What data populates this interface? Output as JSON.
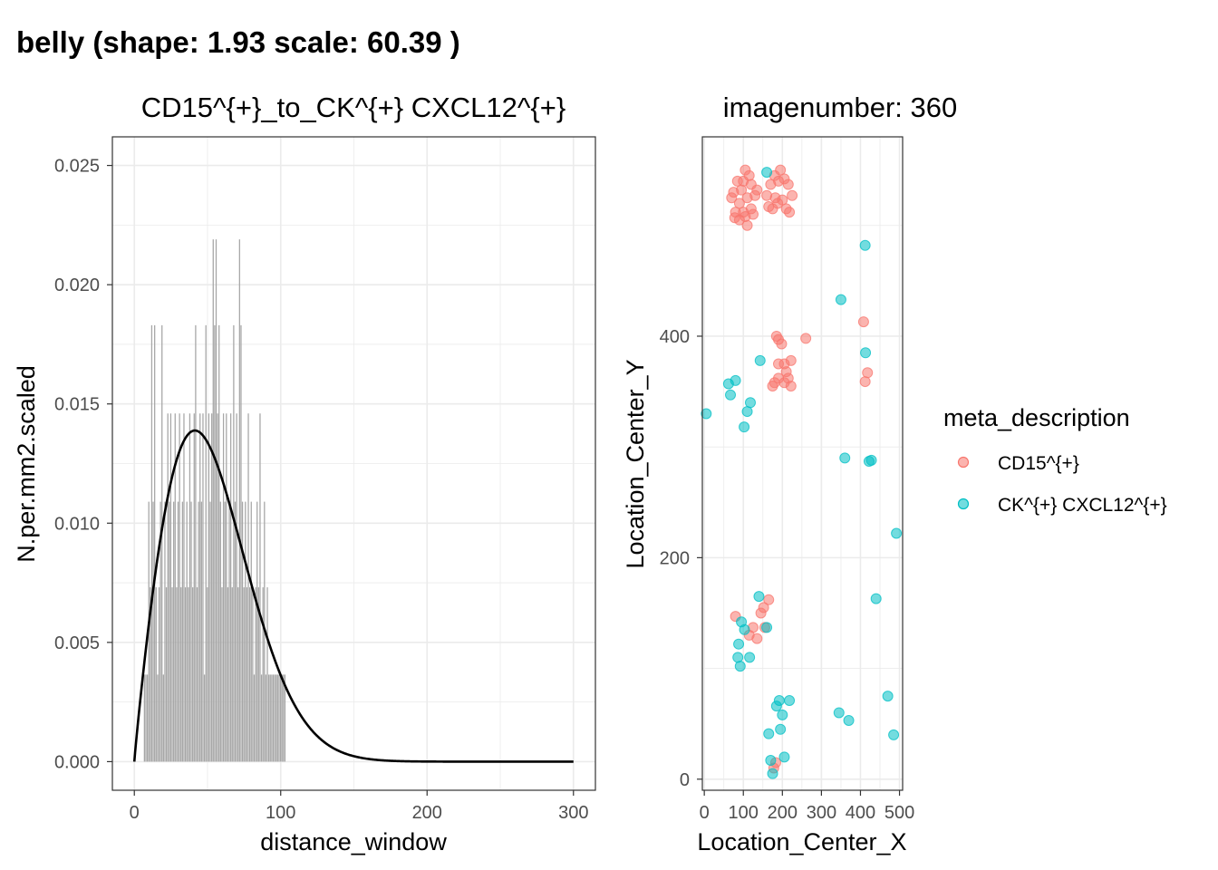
{
  "figure_title": "belly (shape: 1.93 scale: 60.39 )",
  "colors": {
    "bar": "#a6a6a6",
    "curve": "#000000",
    "cd15": "#F8766D",
    "ck": "#00BFC4"
  },
  "chart_data": [
    {
      "type": "bar",
      "title": "CD15^{+}_to_CK^{+} CXCL12^{+}",
      "xlabel": "distance_window",
      "ylabel": "N.per.mm2.scaled",
      "xlim": [
        -15,
        315
      ],
      "ylim": [
        -0.0012,
        0.0262
      ],
      "xticks": [
        0,
        100,
        200,
        300
      ],
      "xtick_labels": [
        "0",
        "100",
        "200",
        "300"
      ],
      "yticks": [
        0,
        0.005,
        0.01,
        0.015,
        0.02,
        0.025
      ],
      "ytick_labels": [
        "0.000",
        "0.005",
        "0.010",
        "0.015",
        "0.020",
        "0.025"
      ],
      "bar_width": 1,
      "bars": [
        {
          "x": 7,
          "y": 0.00365
        },
        {
          "x": 8,
          "y": 0.00365
        },
        {
          "x": 9,
          "y": 0.00365
        },
        {
          "x": 10,
          "y": 0.0109
        },
        {
          "x": 11,
          "y": 0.00731
        },
        {
          "x": 12,
          "y": 0.0183
        },
        {
          "x": 13,
          "y": 0.0109
        },
        {
          "x": 14,
          "y": 0.0183
        },
        {
          "x": 15,
          "y": 0.00731
        },
        {
          "x": 16,
          "y": 0.00365
        },
        {
          "x": 17,
          "y": 0.00731
        },
        {
          "x": 18,
          "y": 0.0109
        },
        {
          "x": 19,
          "y": 0.0183
        },
        {
          "x": 20,
          "y": 0.00365
        },
        {
          "x": 21,
          "y": 0.0109
        },
        {
          "x": 22,
          "y": 0.00731
        },
        {
          "x": 23,
          "y": 0.0146
        },
        {
          "x": 24,
          "y": 0.0109
        },
        {
          "x": 25,
          "y": 0.0146
        },
        {
          "x": 26,
          "y": 0.00731
        },
        {
          "x": 27,
          "y": 0.0109
        },
        {
          "x": 28,
          "y": 0.0146
        },
        {
          "x": 29,
          "y": 0.00731
        },
        {
          "x": 30,
          "y": 0.0109
        },
        {
          "x": 31,
          "y": 0.0146
        },
        {
          "x": 32,
          "y": 0.00731
        },
        {
          "x": 33,
          "y": 0.0109
        },
        {
          "x": 34,
          "y": 0.0146
        },
        {
          "x": 35,
          "y": 0.00731
        },
        {
          "x": 36,
          "y": 0.0109
        },
        {
          "x": 37,
          "y": 0.00731
        },
        {
          "x": 38,
          "y": 0.0146
        },
        {
          "x": 39,
          "y": 0.0109
        },
        {
          "x": 40,
          "y": 0.00731
        },
        {
          "x": 41,
          "y": 0.0146
        },
        {
          "x": 42,
          "y": 0.0183
        },
        {
          "x": 43,
          "y": 0.00731
        },
        {
          "x": 44,
          "y": 0.0109
        },
        {
          "x": 45,
          "y": 0.0146
        },
        {
          "x": 46,
          "y": 0.0109
        },
        {
          "x": 47,
          "y": 0.0146
        },
        {
          "x": 48,
          "y": 0.00365
        },
        {
          "x": 49,
          "y": 0.0183
        },
        {
          "x": 50,
          "y": 0.00731
        },
        {
          "x": 51,
          "y": 0.0146
        },
        {
          "x": 52,
          "y": 0.0109
        },
        {
          "x": 53,
          "y": 0.0146
        },
        {
          "x": 54,
          "y": 0.0219
        },
        {
          "x": 55,
          "y": 0.0183
        },
        {
          "x": 56,
          "y": 0.0219
        },
        {
          "x": 57,
          "y": 0.0146
        },
        {
          "x": 58,
          "y": 0.0183
        },
        {
          "x": 59,
          "y": 0.0109
        },
        {
          "x": 60,
          "y": 0.00731
        },
        {
          "x": 61,
          "y": 0.0146
        },
        {
          "x": 62,
          "y": 0.0109
        },
        {
          "x": 63,
          "y": 0.0146
        },
        {
          "x": 64,
          "y": 0.00731
        },
        {
          "x": 65,
          "y": 0.0109
        },
        {
          "x": 66,
          "y": 0.0146
        },
        {
          "x": 67,
          "y": 0.00731
        },
        {
          "x": 68,
          "y": 0.0183
        },
        {
          "x": 69,
          "y": 0.0109
        },
        {
          "x": 70,
          "y": 0.0146
        },
        {
          "x": 71,
          "y": 0.00731
        },
        {
          "x": 72,
          "y": 0.0219
        },
        {
          "x": 73,
          "y": 0.0183
        },
        {
          "x": 74,
          "y": 0.0109
        },
        {
          "x": 75,
          "y": 0.00731
        },
        {
          "x": 76,
          "y": 0.0109
        },
        {
          "x": 77,
          "y": 0.00731
        },
        {
          "x": 78,
          "y": 0.0146
        },
        {
          "x": 79,
          "y": 0.00731
        },
        {
          "x": 80,
          "y": 0.0109
        },
        {
          "x": 81,
          "y": 0.00731
        },
        {
          "x": 82,
          "y": 0.00365
        },
        {
          "x": 83,
          "y": 0.00731
        },
        {
          "x": 84,
          "y": 0.0109
        },
        {
          "x": 85,
          "y": 0.00731
        },
        {
          "x": 86,
          "y": 0.0146
        },
        {
          "x": 87,
          "y": 0.00365
        },
        {
          "x": 88,
          "y": 0.00731
        },
        {
          "x": 89,
          "y": 0.0109
        },
        {
          "x": 90,
          "y": 0.00365
        },
        {
          "x": 91,
          "y": 0.00731
        },
        {
          "x": 92,
          "y": 0.00365
        },
        {
          "x": 93,
          "y": 0.00365
        },
        {
          "x": 94,
          "y": 0.00365
        },
        {
          "x": 95,
          "y": 0.00365
        },
        {
          "x": 96,
          "y": 0.00365
        },
        {
          "x": 97,
          "y": 0.00365
        },
        {
          "x": 98,
          "y": 0.00365
        },
        {
          "x": 99,
          "y": 0.00365
        },
        {
          "x": 100,
          "y": 0.00365
        },
        {
          "x": 101,
          "y": 0.00365
        },
        {
          "x": 102,
          "y": 0.00365
        },
        {
          "x": 103,
          "y": 0.00365
        }
      ],
      "curve": {
        "kind": "weibull_density",
        "shape": 1.93,
        "scale": 60.39,
        "x_range": [
          0,
          300
        ]
      }
    },
    {
      "type": "scatter",
      "title": "imagenumber:  360",
      "xlabel": "Location_Center_X",
      "ylabel": "Location_Center_Y",
      "xlim": [
        -5,
        508
      ],
      "ylim": [
        -10,
        580
      ],
      "xticks": [
        0,
        100,
        200,
        300,
        400,
        500
      ],
      "xtick_labels": [
        "0",
        "100",
        "200",
        "300",
        "400",
        "500"
      ],
      "yticks": [
        0,
        200,
        400
      ],
      "ytick_labels": [
        "0",
        "200",
        "400"
      ],
      "legend": {
        "title": "meta_description",
        "placement": "right",
        "entries": [
          "CD15^{+}",
          "CK^{+} CXCL12^{+}"
        ]
      },
      "series": [
        {
          "name": "CD15^{+}",
          "color_key": "cd15",
          "points": [
            [
              105,
              550
            ],
            [
              100,
              540
            ],
            [
              115,
              545
            ],
            [
              85,
              540
            ],
            [
              75,
              530
            ],
            [
              95,
              532
            ],
            [
              120,
              537
            ],
            [
              130,
              527
            ],
            [
              110,
              525
            ],
            [
              90,
              520
            ],
            [
              70,
              525
            ],
            [
              100,
              512
            ],
            [
              80,
              512
            ],
            [
              120,
              515
            ],
            [
              105,
              508
            ],
            [
              90,
              505
            ],
            [
              125,
              510
            ],
            [
              135,
              532
            ],
            [
              110,
              500
            ],
            [
              78,
              507
            ],
            [
              195,
              550
            ],
            [
              180,
              545
            ],
            [
              205,
              542
            ],
            [
              190,
              540
            ],
            [
              170,
              537
            ],
            [
              215,
              537
            ],
            [
              160,
              527
            ],
            [
              182,
              525
            ],
            [
              200,
              523
            ],
            [
              225,
              527
            ],
            [
              175,
              515
            ],
            [
              210,
              515
            ],
            [
              188,
              520
            ],
            [
              165,
              517
            ],
            [
              218,
              512
            ],
            [
              185,
              400
            ],
            [
              190,
              397
            ],
            [
              198,
              393
            ],
            [
              260,
              398
            ],
            [
              408,
              413
            ],
            [
              190,
              375
            ],
            [
              205,
              375
            ],
            [
              222,
              378
            ],
            [
              210,
              368
            ],
            [
              215,
              362
            ],
            [
              190,
              362
            ],
            [
              180,
              358
            ],
            [
              205,
              358
            ],
            [
              222,
              355
            ],
            [
              175,
              355
            ],
            [
              418,
              367
            ],
            [
              412,
              359
            ],
            [
              165,
              162
            ],
            [
              152,
              155
            ],
            [
              145,
              150
            ],
            [
              80,
              147
            ],
            [
              125,
              137
            ],
            [
              115,
              130
            ],
            [
              155,
              137
            ],
            [
              135,
              127
            ],
            [
              183,
              15
            ],
            [
              178,
              10
            ]
          ]
        },
        {
          "name": "CK^{+} CXCL12^{+}",
          "color_key": "ck",
          "points": [
            [
              160,
              548
            ],
            [
              412,
              482
            ],
            [
              350,
              433
            ],
            [
              413,
              385
            ],
            [
              143,
              378
            ],
            [
              62,
              357
            ],
            [
              80,
              360
            ],
            [
              67,
              347
            ],
            [
              118,
              340
            ],
            [
              110,
              332
            ],
            [
              5,
              330
            ],
            [
              102,
              318
            ],
            [
              360,
              290
            ],
            [
              428,
              288
            ],
            [
              422,
              287
            ],
            [
              492,
              222
            ],
            [
              440,
              163
            ],
            [
              140,
              165
            ],
            [
              95,
              142
            ],
            [
              103,
              135
            ],
            [
              160,
              137
            ],
            [
              88,
              122
            ],
            [
              116,
              110
            ],
            [
              86,
              110
            ],
            [
              92,
              102
            ],
            [
              470,
              75
            ],
            [
              192,
              71
            ],
            [
              218,
              71
            ],
            [
              185,
              66
            ],
            [
              200,
              58
            ],
            [
              345,
              60
            ],
            [
              370,
              53
            ],
            [
              195,
              45
            ],
            [
              165,
              41
            ],
            [
              485,
              40
            ],
            [
              170,
              17
            ],
            [
              205,
              20
            ],
            [
              175,
              5
            ]
          ]
        }
      ]
    }
  ]
}
